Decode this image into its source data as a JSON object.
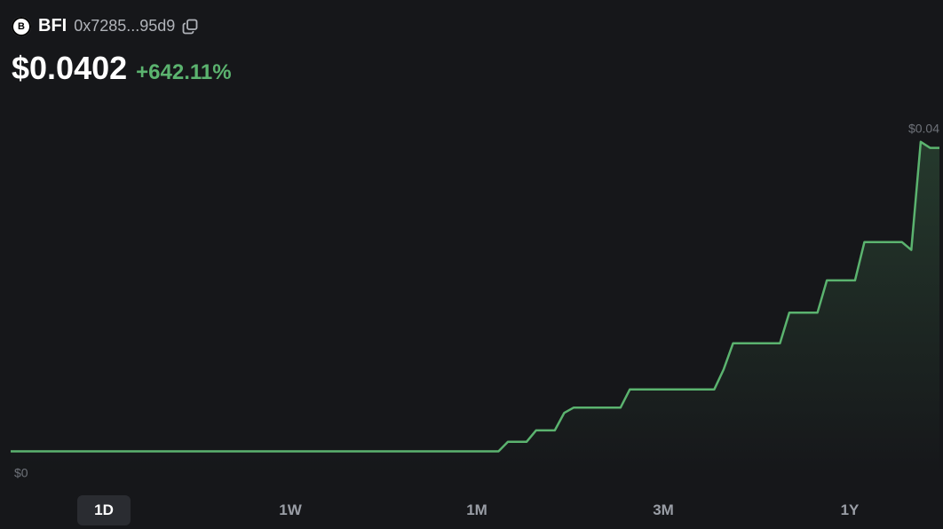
{
  "header": {
    "icon": "B",
    "symbol": "BFI",
    "address": "0x7285...95d9",
    "price": "$0.0402",
    "change": "+642.11%"
  },
  "ranges": [
    "1D",
    "1W",
    "1M",
    "3M",
    "1Y"
  ],
  "chart_data": {
    "type": "line",
    "series": [
      {
        "color": "#5bb36f",
        "values": [
          0.0054,
          0.0054,
          0.0054,
          0.0054,
          0.0054,
          0.0054,
          0.0054,
          0.0054,
          0.0054,
          0.0054,
          0.0054,
          0.0054,
          0.0054,
          0.0054,
          0.0054,
          0.0054,
          0.0054,
          0.0054,
          0.0054,
          0.0054,
          0.0054,
          0.0054,
          0.0054,
          0.0054,
          0.0054,
          0.0054,
          0.0054,
          0.0054,
          0.0054,
          0.0054,
          0.0054,
          0.0054,
          0.0054,
          0.0054,
          0.0054,
          0.0054,
          0.0054,
          0.0054,
          0.0054,
          0.0054,
          0.0054,
          0.0054,
          0.0054,
          0.0054,
          0.0054,
          0.0054,
          0.0054,
          0.0054,
          0.0054,
          0.0054,
          0.0054,
          0.0054,
          0.0054,
          0.0065,
          0.0065,
          0.0065,
          0.0078,
          0.0078,
          0.0078,
          0.0098,
          0.0104,
          0.0104,
          0.0104,
          0.0104,
          0.0104,
          0.0104,
          0.0125,
          0.0125,
          0.0125,
          0.0125,
          0.0125,
          0.0125,
          0.0125,
          0.0125,
          0.0125,
          0.0125,
          0.0148,
          0.0178,
          0.0178,
          0.0178,
          0.0178,
          0.0178,
          0.0178,
          0.0213,
          0.0213,
          0.0213,
          0.0213,
          0.025,
          0.025,
          0.025,
          0.025,
          0.0294,
          0.0294,
          0.0294,
          0.0294,
          0.0294,
          0.0285,
          0.0409,
          0.0402,
          0.0402
        ]
      }
    ],
    "ylim": [
      0.0028,
      0.0423
    ],
    "yticks": [
      {
        "value": 0.0028,
        "label": "$0"
      },
      {
        "value": 0.0423,
        "label": "$0.04"
      }
    ]
  }
}
